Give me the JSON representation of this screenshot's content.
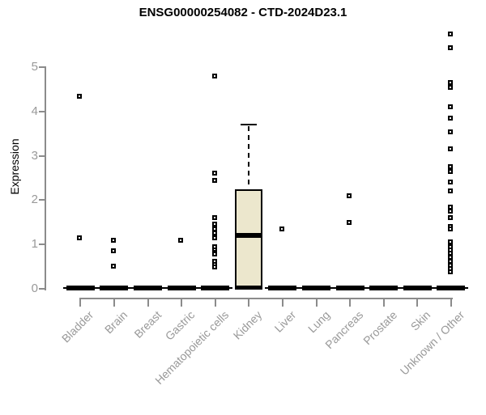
{
  "title": "ENSG00000254082 - CTD-2024D23.1",
  "chart_data": {
    "type": "boxplot",
    "title": "ENSG00000254082 - CTD-2024D23.1",
    "xlabel": "",
    "ylabel": "Expression",
    "ylim": [
      0,
      5.8
    ],
    "yticks": [
      0,
      1,
      2,
      3,
      4,
      5
    ],
    "grid": false,
    "legend": "none",
    "point_shape": "open-square",
    "colors": {
      "box_fill": "#ECE7CD",
      "box_border": "#000000",
      "axis": "#8B8B8B",
      "labels": "#999999",
      "title": "#000000"
    },
    "categories": [
      "Bladder",
      "Brain",
      "Breast",
      "Gastric",
      "Hematopoietic cells",
      "Kidney",
      "Liver",
      "Lung",
      "Pancreas",
      "Prostate",
      "Skin",
      "Unknown / Other"
    ],
    "series": [
      {
        "name": "Bladder",
        "whisker_low": 0,
        "q1": 0,
        "median": 0,
        "q3": 0,
        "whisker_high": 0,
        "outliers": [
          4.35,
          1.15
        ]
      },
      {
        "name": "Brain",
        "whisker_low": 0,
        "q1": 0,
        "median": 0,
        "q3": 0,
        "whisker_high": 0,
        "outliers": [
          1.1,
          0.85,
          0.5
        ]
      },
      {
        "name": "Breast",
        "whisker_low": 0,
        "q1": 0,
        "median": 0,
        "q3": 0,
        "whisker_high": 0,
        "outliers": []
      },
      {
        "name": "Gastric",
        "whisker_low": 0,
        "q1": 0,
        "median": 0,
        "q3": 0,
        "whisker_high": 0,
        "outliers": [
          1.1
        ]
      },
      {
        "name": "Hematopoietic cells",
        "whisker_low": 0,
        "q1": 0,
        "median": 0,
        "q3": 0,
        "whisker_high": 0,
        "outliers": [
          4.8,
          2.6,
          2.45,
          1.6,
          1.45,
          1.35,
          1.25,
          1.15,
          0.95,
          0.88,
          0.82,
          0.78,
          0.62,
          0.55,
          0.48
        ]
      },
      {
        "name": "Kidney",
        "whisker_low": 0,
        "q1": 0,
        "median": 1.2,
        "q3": 2.25,
        "whisker_high": 3.7,
        "outliers": []
      },
      {
        "name": "Liver",
        "whisker_low": 0,
        "q1": 0,
        "median": 0,
        "q3": 0,
        "whisker_high": 0,
        "outliers": [
          1.35
        ]
      },
      {
        "name": "Lung",
        "whisker_low": 0,
        "q1": 0,
        "median": 0,
        "q3": 0,
        "whisker_high": 0,
        "outliers": []
      },
      {
        "name": "Pancreas",
        "whisker_low": 0,
        "q1": 0,
        "median": 0,
        "q3": 0,
        "whisker_high": 0,
        "outliers": [
          2.1,
          1.5
        ]
      },
      {
        "name": "Prostate",
        "whisker_low": 0,
        "q1": 0,
        "median": 0,
        "q3": 0,
        "whisker_high": 0,
        "outliers": []
      },
      {
        "name": "Skin",
        "whisker_low": 0,
        "q1": 0,
        "median": 0,
        "q3": 0,
        "whisker_high": 0,
        "outliers": []
      },
      {
        "name": "Unknown / Other",
        "whisker_low": 0,
        "q1": 0,
        "median": 0,
        "q3": 0,
        "whisker_high": 0,
        "outliers": [
          5.75,
          5.45,
          4.65,
          4.55,
          4.1,
          3.85,
          3.55,
          3.15,
          2.75,
          2.65,
          2.4,
          2.2,
          1.85,
          1.75,
          1.6,
          1.4,
          1.35,
          1.05,
          0.95,
          0.87,
          0.8,
          0.7,
          0.62,
          0.53,
          0.46,
          0.37
        ]
      }
    ]
  }
}
